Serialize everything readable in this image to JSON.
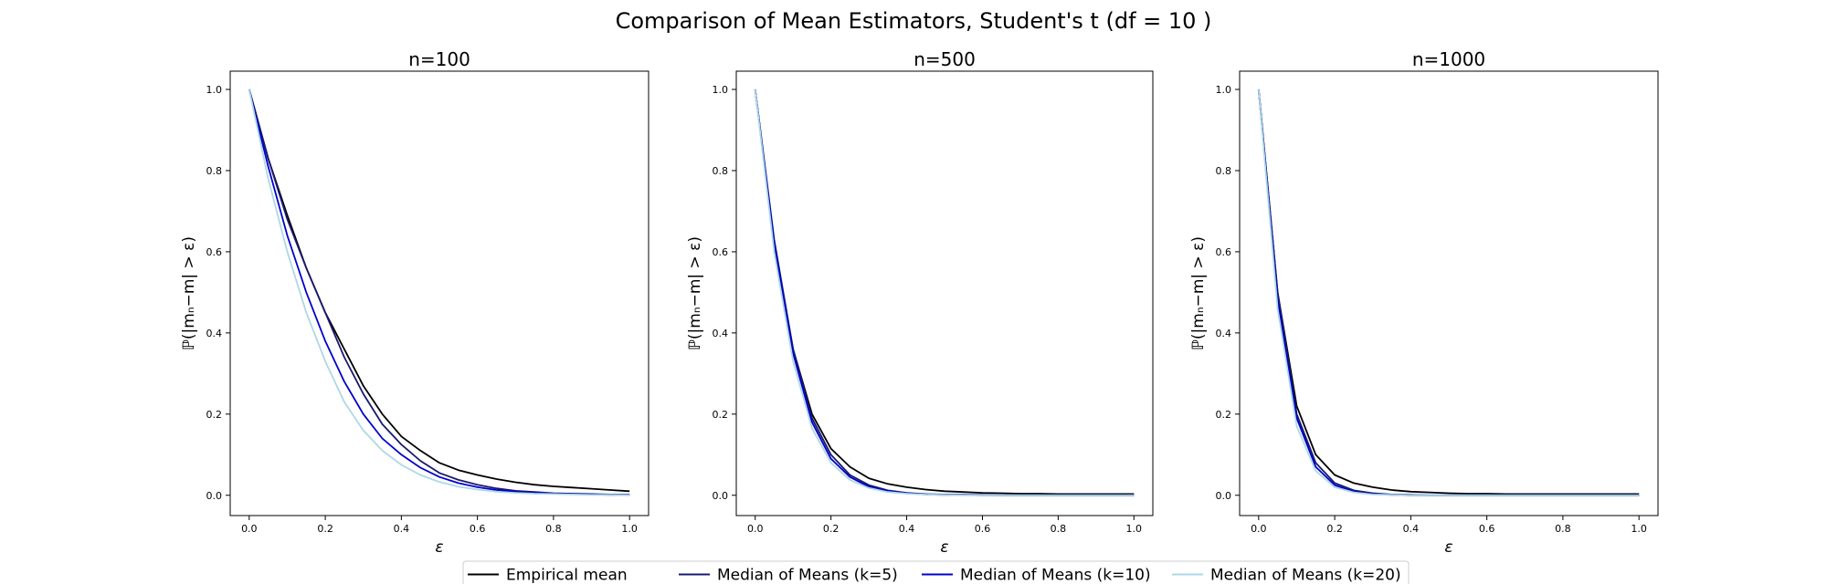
{
  "figure": {
    "title": "Comparison of Mean Estimators, Student's t (df = 10 )"
  },
  "legend": {
    "placement": "bottom-center",
    "entries": [
      {
        "label": "Empirical mean",
        "color": "#000000"
      },
      {
        "label": "Median of Means (k=5)",
        "color": "#191970"
      },
      {
        "label": "Median of Means (k=10)",
        "color": "#0000cd"
      },
      {
        "label": "Median of Means (k=20)",
        "color": "#add8e6"
      }
    ]
  },
  "chart_data": [
    {
      "type": "line",
      "title": "n=100",
      "xlabel": "ε",
      "ylabel": "ℙ(|mₙ−m| > ε)",
      "xlim": [
        -0.05,
        1.05
      ],
      "ylim": [
        -0.05,
        1.045
      ],
      "xticks": [
        "0.0",
        "0.2",
        "0.4",
        "0.6",
        "0.8",
        "1.0"
      ],
      "yticks": [
        "0.0",
        "0.2",
        "0.4",
        "0.6",
        "0.8",
        "1.0"
      ],
      "grid": false,
      "x": [
        0,
        0.05,
        0.1,
        0.15,
        0.2,
        0.25,
        0.3,
        0.35,
        0.4,
        0.45,
        0.5,
        0.55,
        0.6,
        0.65,
        0.7,
        0.75,
        0.8,
        0.85,
        0.9,
        0.95,
        1.0
      ],
      "series": [
        {
          "name": "Empirical mean",
          "values": [
            1.0,
            0.83,
            0.69,
            0.56,
            0.45,
            0.36,
            0.27,
            0.2,
            0.145,
            0.11,
            0.08,
            0.062,
            0.05,
            0.04,
            0.032,
            0.026,
            0.022,
            0.019,
            0.016,
            0.013,
            0.01
          ]
        },
        {
          "name": "Median of Means (k=5)",
          "values": [
            1.0,
            0.83,
            0.68,
            0.56,
            0.45,
            0.34,
            0.25,
            0.175,
            0.125,
            0.085,
            0.055,
            0.038,
            0.026,
            0.017,
            0.011,
            0.008,
            0.005,
            0.004,
            0.003,
            0.002,
            0.001
          ]
        },
        {
          "name": "Median of Means (k=10)",
          "values": [
            1.0,
            0.81,
            0.64,
            0.5,
            0.38,
            0.28,
            0.2,
            0.14,
            0.1,
            0.068,
            0.045,
            0.03,
            0.02,
            0.013,
            0.009,
            0.006,
            0.004,
            0.003,
            0.002,
            0.001,
            0.001
          ]
        },
        {
          "name": "Median of Means (k=20)",
          "values": [
            1.0,
            0.78,
            0.6,
            0.45,
            0.33,
            0.23,
            0.16,
            0.11,
            0.075,
            0.05,
            0.033,
            0.021,
            0.014,
            0.009,
            0.006,
            0.004,
            0.003,
            0.002,
            0.001,
            0.001,
            0.0
          ]
        }
      ]
    },
    {
      "type": "line",
      "title": "n=500",
      "xlabel": "ε",
      "ylabel": "ℙ(|mₙ−m| > ε)",
      "xlim": [
        -0.05,
        1.05
      ],
      "ylim": [
        -0.05,
        1.045
      ],
      "xticks": [
        "0.0",
        "0.2",
        "0.4",
        "0.6",
        "0.8",
        "1.0"
      ],
      "yticks": [
        "0.0",
        "0.2",
        "0.4",
        "0.6",
        "0.8",
        "1.0"
      ],
      "grid": false,
      "x": [
        0,
        0.05,
        0.1,
        0.15,
        0.2,
        0.25,
        0.3,
        0.35,
        0.4,
        0.45,
        0.5,
        0.55,
        0.6,
        0.65,
        0.7,
        0.75,
        0.8,
        0.85,
        0.9,
        0.95,
        1.0
      ],
      "series": [
        {
          "name": "Empirical mean",
          "values": [
            1.0,
            0.62,
            0.36,
            0.2,
            0.115,
            0.07,
            0.042,
            0.028,
            0.02,
            0.014,
            0.01,
            0.008,
            0.006,
            0.005,
            0.004,
            0.004,
            0.003,
            0.003,
            0.003,
            0.003,
            0.003
          ]
        },
        {
          "name": "Median of Means (k=5)",
          "values": [
            1.0,
            0.63,
            0.36,
            0.19,
            0.1,
            0.05,
            0.025,
            0.012,
            0.006,
            0.003,
            0.002,
            0.001,
            0.001,
            0.0,
            0.0,
            0.0,
            0.0,
            0.0,
            0.0,
            0.0,
            0.0
          ]
        },
        {
          "name": "Median of Means (k=10)",
          "values": [
            1.0,
            0.62,
            0.35,
            0.18,
            0.09,
            0.045,
            0.021,
            0.01,
            0.005,
            0.002,
            0.001,
            0.001,
            0.0,
            0.0,
            0.0,
            0.0,
            0.0,
            0.0,
            0.0,
            0.0,
            0.0
          ]
        },
        {
          "name": "Median of Means (k=20)",
          "values": [
            1.0,
            0.6,
            0.33,
            0.165,
            0.08,
            0.038,
            0.018,
            0.008,
            0.004,
            0.002,
            0.001,
            0.0,
            0.0,
            0.0,
            0.0,
            0.0,
            0.0,
            0.0,
            0.0,
            0.0,
            0.0
          ]
        }
      ]
    },
    {
      "type": "line",
      "title": "n=1000",
      "xlabel": "ε",
      "ylabel": "ℙ(|mₙ−m| > ε)",
      "xlim": [
        -0.05,
        1.05
      ],
      "ylim": [
        -0.05,
        1.045
      ],
      "xticks": [
        "0.0",
        "0.2",
        "0.4",
        "0.6",
        "0.8",
        "1.0"
      ],
      "yticks": [
        "0.0",
        "0.2",
        "0.4",
        "0.6",
        "0.8",
        "1.0"
      ],
      "grid": false,
      "x": [
        0,
        0.05,
        0.1,
        0.15,
        0.2,
        0.25,
        0.3,
        0.35,
        0.4,
        0.45,
        0.5,
        0.55,
        0.6,
        0.65,
        0.7,
        0.75,
        0.8,
        0.85,
        0.9,
        0.95,
        1.0
      ],
      "series": [
        {
          "name": "Empirical mean",
          "values": [
            1.0,
            0.5,
            0.22,
            0.1,
            0.05,
            0.03,
            0.02,
            0.013,
            0.009,
            0.007,
            0.005,
            0.004,
            0.004,
            0.003,
            0.003,
            0.003,
            0.003,
            0.003,
            0.003,
            0.003,
            0.003
          ]
        },
        {
          "name": "Median of Means (k=5)",
          "values": [
            1.0,
            0.5,
            0.2,
            0.08,
            0.03,
            0.012,
            0.005,
            0.002,
            0.001,
            0.0,
            0.0,
            0.0,
            0.0,
            0.0,
            0.0,
            0.0,
            0.0,
            0.0,
            0.0,
            0.0,
            0.0
          ]
        },
        {
          "name": "Median of Means (k=10)",
          "values": [
            1.0,
            0.48,
            0.19,
            0.07,
            0.025,
            0.009,
            0.003,
            0.001,
            0.0,
            0.0,
            0.0,
            0.0,
            0.0,
            0.0,
            0.0,
            0.0,
            0.0,
            0.0,
            0.0,
            0.0,
            0.0
          ]
        },
        {
          "name": "Median of Means (k=20)",
          "values": [
            1.0,
            0.46,
            0.17,
            0.06,
            0.02,
            0.007,
            0.002,
            0.001,
            0.0,
            0.0,
            0.0,
            0.0,
            0.0,
            0.0,
            0.0,
            0.0,
            0.0,
            0.0,
            0.0,
            0.0,
            0.0
          ]
        }
      ]
    }
  ]
}
